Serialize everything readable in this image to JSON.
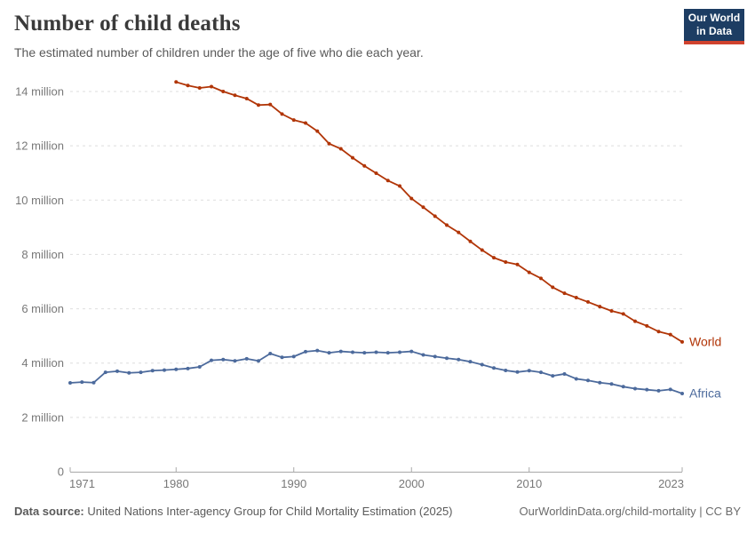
{
  "header": {
    "title": "Number of child deaths",
    "subtitle": "The estimated number of children under the age of five who die each year."
  },
  "logo": {
    "line1": "Our World",
    "line2": "in Data",
    "bg_color": "#1d3d63",
    "underline_color": "#d0422e",
    "text_color": "#ffffff"
  },
  "footer": {
    "data_source_label": "Data source:",
    "data_source": "United Nations Inter-agency Group for Child Mortality Estimation (2025)",
    "link": "OurWorldinData.org/child-mortality | CC BY"
  },
  "chart_data": {
    "type": "line",
    "title": "Number of child deaths",
    "xlabel": "",
    "ylabel": "",
    "value_unit": "million",
    "grid": "horizontal-dashed",
    "legend_position": "end-of-line",
    "x_axis": {
      "range": [
        1971,
        2023
      ],
      "ticks": [
        {
          "value": 1971,
          "label": "1971"
        },
        {
          "value": 1980,
          "label": "1980"
        },
        {
          "value": 1990,
          "label": "1990"
        },
        {
          "value": 2000,
          "label": "2000"
        },
        {
          "value": 2010,
          "label": "2010"
        },
        {
          "value": 2023,
          "label": "2023"
        }
      ]
    },
    "y_axis": {
      "range": [
        0,
        14.6
      ],
      "ticks": [
        {
          "value": 0,
          "label": "0"
        },
        {
          "value": 2,
          "label": "2 million"
        },
        {
          "value": 4,
          "label": "4 million"
        },
        {
          "value": 6,
          "label": "6 million"
        },
        {
          "value": 8,
          "label": "8 million"
        },
        {
          "value": 10,
          "label": "10 million"
        },
        {
          "value": 12,
          "label": "12 million"
        },
        {
          "value": 14,
          "label": "14 million"
        }
      ]
    },
    "series": [
      {
        "name": "World",
        "key": "world",
        "color": "#B13507",
        "start_year": 1980,
        "cadence": "annual",
        "values": [
          14.35,
          14.22,
          14.13,
          14.18,
          14.0,
          13.86,
          13.74,
          13.5,
          13.52,
          13.17,
          12.95,
          12.84,
          12.54,
          12.08,
          11.89,
          11.56,
          11.26,
          10.99,
          10.72,
          10.52,
          10.06,
          9.74,
          9.41,
          9.08,
          8.81,
          8.48,
          8.16,
          7.88,
          7.72,
          7.63,
          7.34,
          7.12,
          6.79,
          6.57,
          6.41,
          6.25,
          6.08,
          5.92,
          5.81,
          5.54,
          5.37,
          5.16,
          5.05,
          4.78
        ]
      },
      {
        "name": "Africa",
        "key": "africa",
        "color": "#4C6A9C",
        "start_year": 1971,
        "cadence": "annual",
        "values": [
          3.27,
          3.3,
          3.28,
          3.66,
          3.7,
          3.64,
          3.66,
          3.72,
          3.74,
          3.77,
          3.8,
          3.86,
          4.1,
          4.13,
          4.08,
          4.16,
          4.08,
          4.35,
          4.21,
          4.24,
          4.42,
          4.46,
          4.38,
          4.43,
          4.4,
          4.38,
          4.4,
          4.38,
          4.4,
          4.43,
          4.3,
          4.24,
          4.18,
          4.13,
          4.05,
          3.94,
          3.82,
          3.73,
          3.67,
          3.72,
          3.66,
          3.53,
          3.6,
          3.42,
          3.36,
          3.28,
          3.23,
          3.13,
          3.06,
          3.02,
          2.98,
          3.03,
          2.88
        ]
      }
    ]
  }
}
